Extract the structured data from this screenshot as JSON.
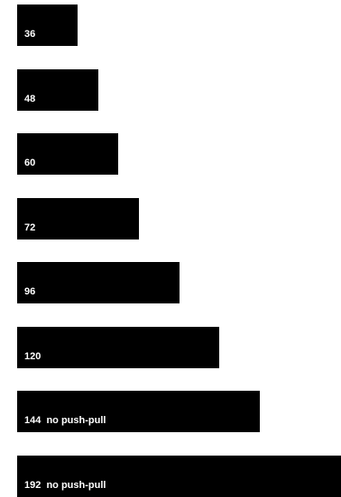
{
  "chart_data": {
    "type": "bar",
    "orientation": "horizontal",
    "categories": [
      "36",
      "48",
      "60",
      "72",
      "96",
      "120",
      "144  no push-pull",
      "192  no push-pull"
    ],
    "values": [
      36,
      48,
      60,
      72,
      96,
      120,
      144,
      192
    ],
    "title": "",
    "xlabel": "",
    "ylabel": "",
    "grid": false,
    "legend": "none",
    "colors": {
      "bar": "#000000",
      "label": "#ffffff",
      "background": "#ffffff"
    }
  }
}
